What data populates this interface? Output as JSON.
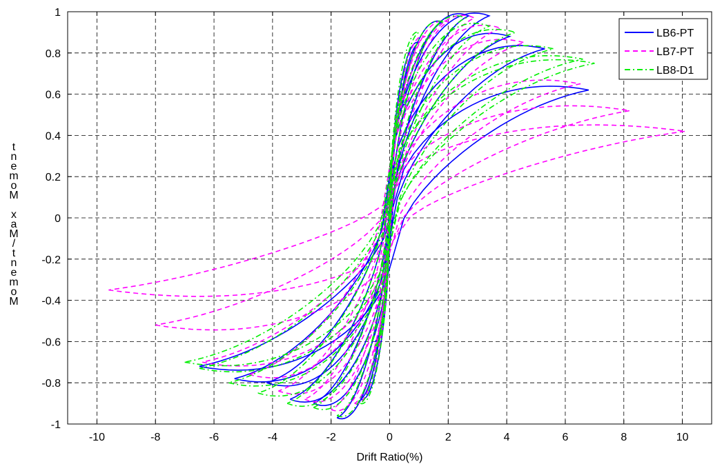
{
  "chart_data": {
    "type": "line",
    "xlabel": "Drift Ratio(%)",
    "ylabel": "Moment/Max Moment",
    "xlim": [
      -11,
      11
    ],
    "ylim": [
      -1,
      1
    ],
    "x_ticks": [
      -10,
      -8,
      -6,
      -4,
      -2,
      0,
      2,
      4,
      6,
      8,
      10
    ],
    "y_ticks": [
      1,
      0.8,
      0.6,
      0.4,
      0.2,
      0,
      -0.2,
      -0.4,
      -0.6,
      -0.8,
      -1
    ],
    "grid": true,
    "legend_position": "top-right",
    "series": [
      {
        "name": "LB6-PT",
        "color": "#0000ff",
        "style": "solid",
        "peaks": [
          [
            0.5,
            0.55
          ],
          [
            1.0,
            0.85
          ],
          [
            1.8,
            0.95
          ],
          [
            2.7,
            0.98
          ],
          [
            3.4,
            0.98
          ],
          [
            4.1,
            0.88
          ],
          [
            5.3,
            0.82
          ],
          [
            6.8,
            0.62
          ]
        ],
        "troughs": [
          [
            -0.5,
            -0.6
          ],
          [
            -1.0,
            -0.88
          ],
          [
            -1.8,
            -0.97
          ],
          [
            -2.6,
            -0.9
          ],
          [
            -3.4,
            -0.88
          ],
          [
            -4.2,
            -0.8
          ],
          [
            -5.3,
            -0.78
          ],
          [
            -6.5,
            -0.72
          ]
        ]
      },
      {
        "name": "LB7-PT",
        "color": "#ff00ff",
        "style": "dashed",
        "peaks": [
          [
            0.6,
            0.6
          ],
          [
            1.2,
            0.88
          ],
          [
            2.0,
            0.95
          ],
          [
            2.9,
            0.97
          ],
          [
            3.8,
            0.92
          ],
          [
            4.6,
            0.85
          ],
          [
            6.5,
            0.65
          ],
          [
            8.2,
            0.52
          ],
          [
            10.1,
            0.42
          ]
        ],
        "troughs": [
          [
            -0.6,
            -0.65
          ],
          [
            -1.2,
            -0.9
          ],
          [
            -2.0,
            -0.93
          ],
          [
            -2.9,
            -0.88
          ],
          [
            -3.8,
            -0.84
          ],
          [
            -4.8,
            -0.76
          ],
          [
            -6.4,
            -0.7
          ],
          [
            -8.0,
            -0.52
          ],
          [
            -9.6,
            -0.35
          ]
        ]
      },
      {
        "name": "LB8-D1",
        "color": "#00ee00",
        "style": "dashdot",
        "peaks": [
          [
            0.5,
            0.6
          ],
          [
            1.0,
            0.9
          ],
          [
            1.8,
            0.95
          ],
          [
            2.6,
            0.97
          ],
          [
            3.4,
            0.93
          ],
          [
            4.3,
            0.9
          ],
          [
            5.6,
            0.82
          ],
          [
            6.6,
            0.77
          ],
          [
            7.0,
            0.75
          ]
        ],
        "troughs": [
          [
            -0.5,
            -0.62
          ],
          [
            -1.0,
            -0.9
          ],
          [
            -1.8,
            -0.96
          ],
          [
            -2.6,
            -0.92
          ],
          [
            -3.5,
            -0.9
          ],
          [
            -4.5,
            -0.85
          ],
          [
            -5.5,
            -0.8
          ],
          [
            -6.5,
            -0.73
          ],
          [
            -7.0,
            -0.7
          ]
        ]
      }
    ]
  }
}
